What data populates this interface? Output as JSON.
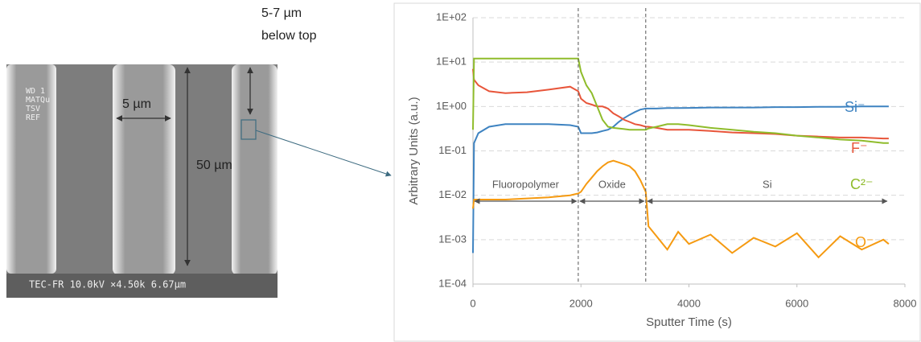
{
  "sem_image": {
    "overlay": [
      "WD 1",
      "MATQu",
      "TSV",
      "REF"
    ],
    "footer": "TEC-FR 10.0kV ×4.50k 6.67µm",
    "width_label": "5 µm",
    "depth_label": "50 µm",
    "position_label": "5-7 µm",
    "position_label_2": "below top"
  },
  "chart_data": {
    "type": "line",
    "log_y": true,
    "grid": true,
    "y_label": "Arbitrary Units (a.u.)",
    "x_label": "Sputter Time (s)",
    "xlim": [
      0,
      8000
    ],
    "xticks": [
      0,
      2000,
      4000,
      6000,
      8000
    ],
    "ylim": [
      0.0001,
      100
    ],
    "yticks": [
      {
        "value": 0.0001,
        "label": "1E-04"
      },
      {
        "value": 0.001,
        "label": "1E-03"
      },
      {
        "value": 0.01,
        "label": "1E-02"
      },
      {
        "value": 0.1,
        "label": "1E-01"
      },
      {
        "value": 1,
        "label": "1E+00"
      },
      {
        "value": 10,
        "label": "1E+01"
      },
      {
        "value": 100,
        "label": "1E+02"
      }
    ],
    "regions": [
      {
        "label": "Fluoropolymer",
        "start": 0,
        "end": 1950
      },
      {
        "label": "Oxide",
        "start": 1950,
        "end": 3200
      },
      {
        "label": "Si",
        "start": 3200,
        "end": 7700
      }
    ],
    "x": [
      0,
      20,
      100,
      300,
      600,
      1000,
      1400,
      1800,
      1950,
      2000,
      2100,
      2200,
      2300,
      2400,
      2500,
      2600,
      2700,
      2800,
      2900,
      3000,
      3100,
      3200,
      3250,
      3400,
      3600,
      3800,
      4000,
      4400,
      4800,
      5200,
      5600,
      6000,
      6400,
      6800,
      7200,
      7600,
      7700
    ],
    "series": [
      {
        "name": "Si⁻",
        "color": "#3e83c1",
        "values": [
          0.0005,
          0.15,
          0.25,
          0.35,
          0.4,
          0.4,
          0.4,
          0.38,
          0.35,
          0.25,
          0.25,
          0.25,
          0.26,
          0.28,
          0.3,
          0.35,
          0.45,
          0.55,
          0.65,
          0.75,
          0.85,
          0.9,
          0.9,
          0.9,
          0.92,
          0.92,
          0.93,
          0.95,
          0.95,
          0.95,
          0.97,
          0.97,
          0.98,
          0.98,
          1.0,
          1.0,
          1.0
        ]
      },
      {
        "name": "F⁻",
        "color": "#e8553a",
        "values": [
          7,
          4,
          3,
          2.2,
          2,
          2.1,
          2.4,
          2.8,
          2.2,
          1.5,
          1.2,
          1.1,
          1.0,
          1.0,
          0.9,
          0.7,
          0.6,
          0.5,
          0.45,
          0.4,
          0.38,
          0.35,
          0.35,
          0.33,
          0.3,
          0.3,
          0.3,
          0.28,
          0.26,
          0.25,
          0.24,
          0.22,
          0.21,
          0.2,
          0.2,
          0.19,
          0.19
        ]
      },
      {
        "name": "C²⁻",
        "color": "#8fbc2b",
        "values": [
          0.3,
          12,
          12,
          12,
          12,
          12,
          12,
          12,
          12,
          6,
          3,
          2,
          1,
          0.5,
          0.35,
          0.33,
          0.32,
          0.31,
          0.3,
          0.3,
          0.3,
          0.3,
          0.32,
          0.35,
          0.4,
          0.4,
          0.38,
          0.33,
          0.3,
          0.27,
          0.25,
          0.22,
          0.2,
          0.18,
          0.17,
          0.15,
          0.15
        ]
      },
      {
        "name": "O⁻",
        "color": "#f59a11",
        "values": [
          0.005,
          0.008,
          0.008,
          0.008,
          0.008,
          0.0085,
          0.009,
          0.01,
          0.011,
          0.012,
          0.018,
          0.025,
          0.035,
          0.045,
          0.055,
          0.06,
          0.055,
          0.05,
          0.045,
          0.035,
          0.022,
          0.012,
          0.002,
          0.0012,
          0.0006,
          0.0015,
          0.0008,
          0.0013,
          0.0005,
          0.0011,
          0.0007,
          0.0014,
          0.0004,
          0.0012,
          0.0006,
          0.001,
          0.0008
        ]
      }
    ]
  }
}
